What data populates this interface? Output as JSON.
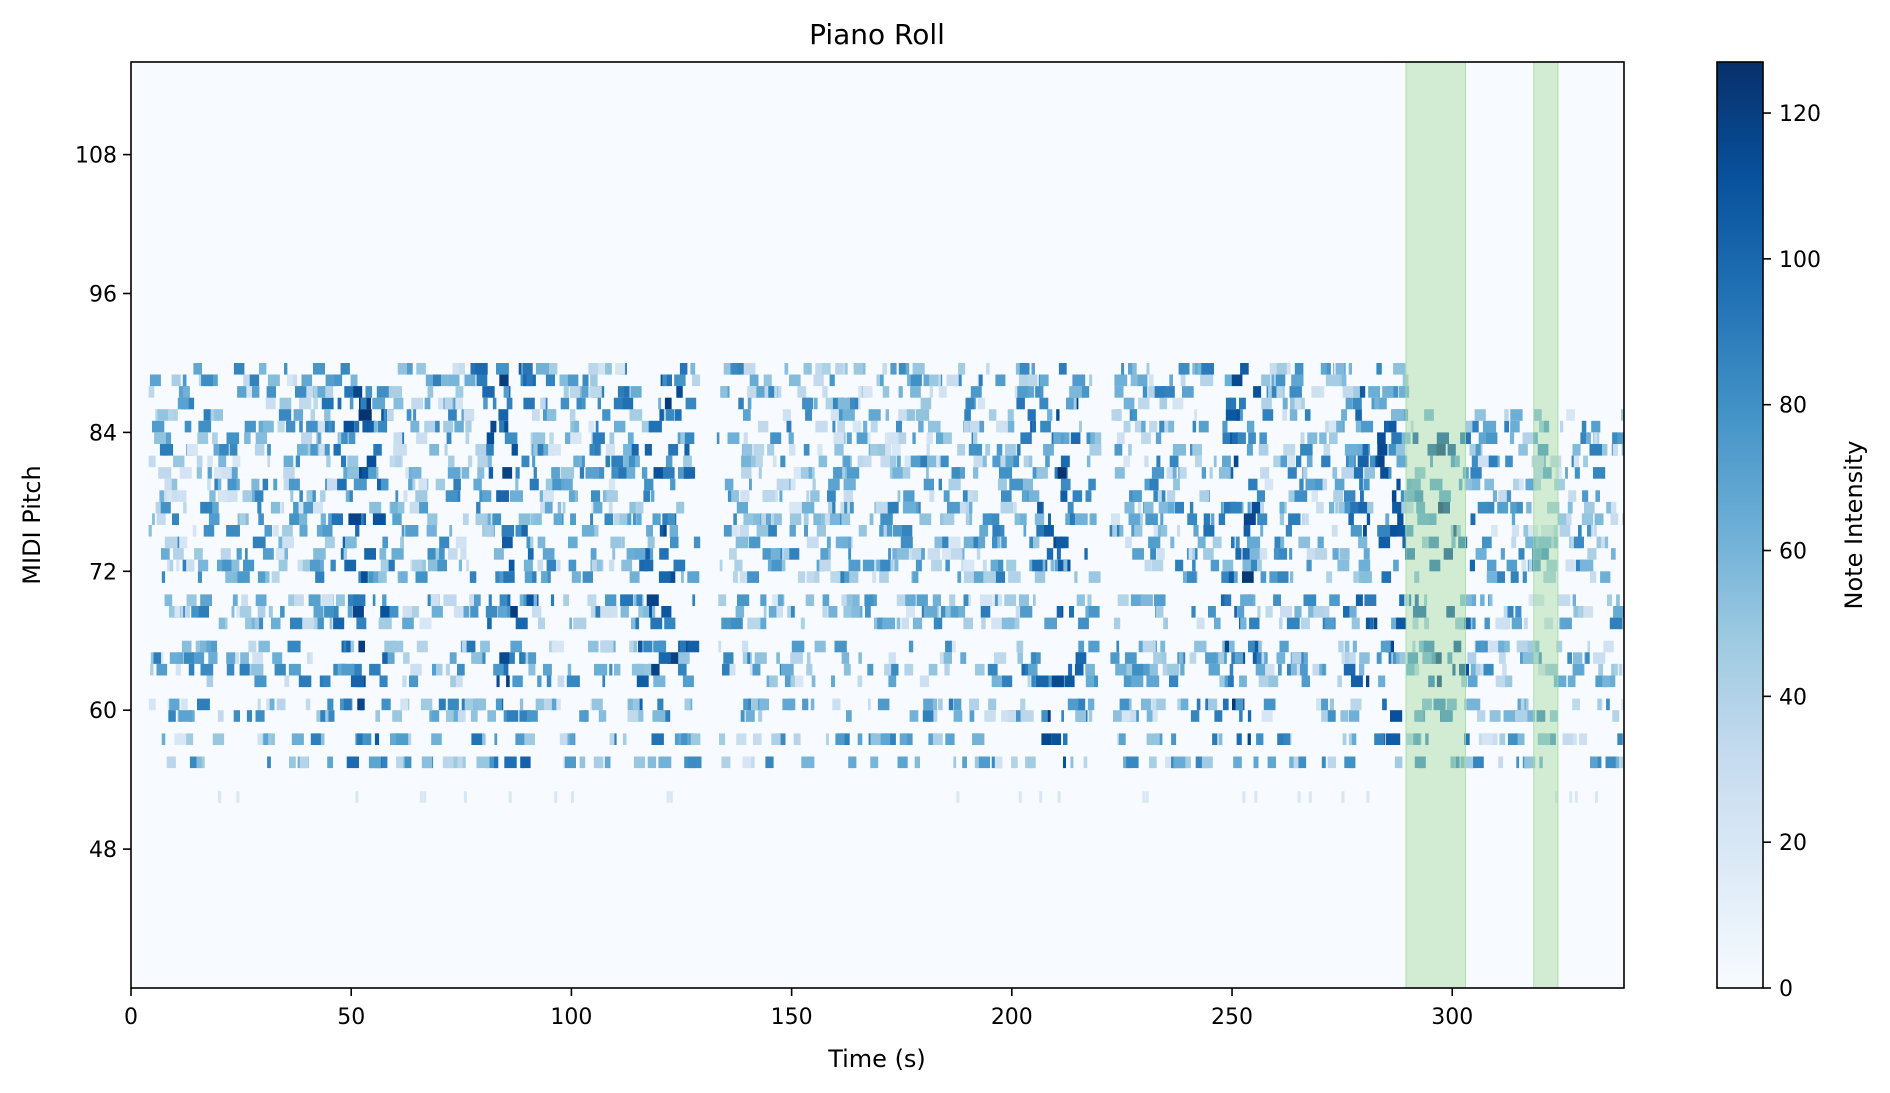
{
  "chart_data": {
    "type": "heatmap",
    "title": "Piano Roll",
    "xlabel": "Time (s)",
    "ylabel": "MIDI Pitch",
    "xlim": [
      0,
      339
    ],
    "ylim": [
      36,
      116
    ],
    "xticks": [
      0,
      50,
      100,
      150,
      200,
      250,
      300
    ],
    "yticks": [
      48,
      60,
      72,
      84,
      96,
      108
    ],
    "colormap": "Blues",
    "background_color": "#f7fbff",
    "colorbar": {
      "label": "Note Intensity",
      "range": [
        0,
        127
      ],
      "ticks": [
        0,
        20,
        40,
        60,
        80,
        100,
        120
      ]
    },
    "highlight_regions": [
      {
        "start": 289.5,
        "end": 303,
        "color": "#a1d99b"
      },
      {
        "start": 318.5,
        "end": 324,
        "color": "#a1d99b"
      }
    ],
    "note_clusters": [
      {
        "t_start": 4,
        "t_end": 58,
        "pitch_min": 55,
        "pitch_max": 90,
        "peak_t": 52
      },
      {
        "t_start": 58,
        "t_end": 91,
        "pitch_min": 55,
        "pitch_max": 90,
        "peak_t": 85
      },
      {
        "t_start": 91,
        "t_end": 128,
        "pitch_min": 51,
        "pitch_max": 90,
        "peak_t": 120
      },
      {
        "t_start": 133,
        "t_end": 218,
        "pitch_min": 55,
        "pitch_max": 91,
        "peak_t": 210
      },
      {
        "t_start": 222,
        "t_end": 256,
        "pitch_min": 51,
        "pitch_max": 90,
        "peak_t": 251
      },
      {
        "t_start": 256,
        "t_end": 289,
        "pitch_min": 55,
        "pitch_max": 90,
        "peak_t": 283
      },
      {
        "t_start": 289,
        "t_end": 339,
        "pitch_min": 53,
        "pitch_max": 85,
        "peak_t": 297
      }
    ],
    "grid": false
  }
}
